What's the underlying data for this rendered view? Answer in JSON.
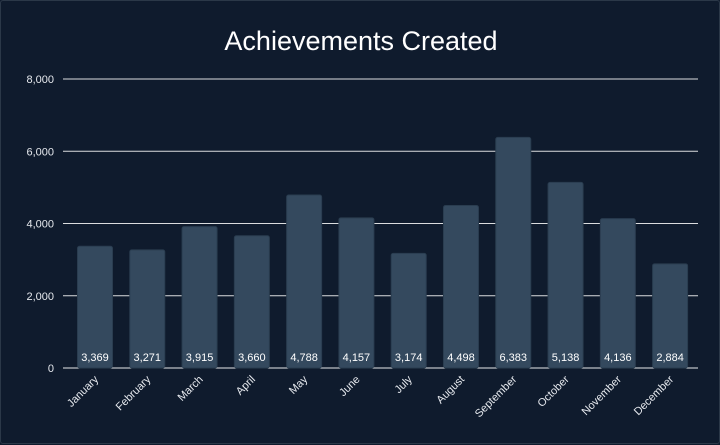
{
  "chart_data": {
    "type": "bar",
    "title": "Achievements Created",
    "xlabel": "",
    "ylabel": "",
    "categories": [
      "January",
      "February",
      "March",
      "April",
      "May",
      "June",
      "July",
      "August",
      "September",
      "October",
      "November",
      "December"
    ],
    "values": [
      3369,
      3271,
      3915,
      3660,
      4788,
      4157,
      3174,
      4498,
      6383,
      5138,
      4136,
      2884
    ],
    "value_labels": [
      "3,369",
      "3,271",
      "3,915",
      "3,660",
      "4,788",
      "4,157",
      "3,174",
      "4,498",
      "6,383",
      "5,138",
      "4,136",
      "2,884"
    ],
    "ylim": [
      0,
      8000
    ],
    "yticks": [
      0,
      2000,
      4000,
      6000,
      8000
    ],
    "ytick_labels": [
      "0",
      "2,000",
      "4,000",
      "6,000",
      "8,000"
    ],
    "grid": true,
    "legend": "none"
  },
  "colors": {
    "background": "#0f1b2d",
    "bar": "#34495e",
    "bar_border": "#2a3d50",
    "grid": "#ffffff",
    "text": "#ffffff",
    "axis_text": "#e6e9ee"
  }
}
